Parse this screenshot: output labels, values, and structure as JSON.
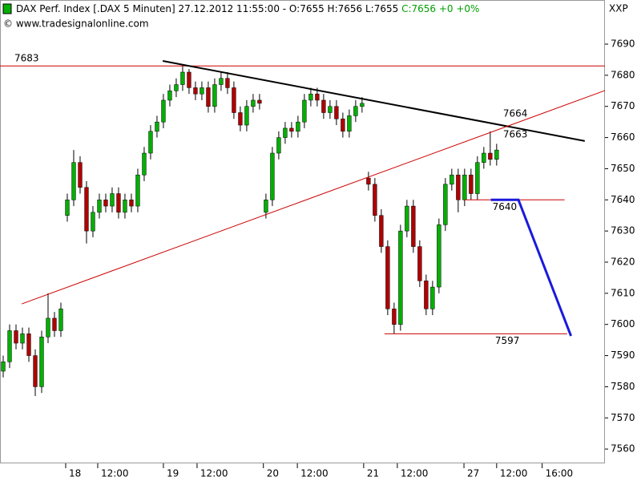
{
  "chart_data": {
    "type": "candlestick",
    "title": "DAX Perf. Index [.DAX  5 Minuten] 27.12.2012 11:55:00 - O:7655 H:7656 L:7655",
    "title_close": "C:7656 +0 +0%",
    "source": "© www.tradesignalonline.com",
    "corner_label": "XXP",
    "up_color": "#00b000",
    "down_color": "#b00000",
    "open": [
      7585,
      7588,
      7598,
      7594,
      7597,
      7590,
      7580,
      7596,
      7602,
      7598,
      7635,
      7640,
      7652,
      7644,
      7630,
      7636,
      7640,
      7638,
      7642,
      7636,
      7640,
      7638,
      7648,
      7655,
      7662,
      7665,
      7672,
      7675,
      7677,
      7681,
      7676,
      7674,
      7676,
      7670,
      7677,
      7679,
      7676,
      7668,
      7664,
      7670,
      7672,
      7636,
      7640,
      7655,
      7660,
      7663,
      7662,
      7665,
      7672,
      7674,
      7672,
      7668,
      7670,
      7666,
      7662,
      7667,
      7670,
      7647,
      7645,
      7635,
      7625,
      7605,
      7600,
      7630,
      7638,
      7625,
      7614,
      7605,
      7612,
      7632,
      7645,
      7648,
      7640,
      7648,
      7642,
      7652,
      7655,
      7653
    ],
    "high": [
      7590,
      7600,
      7600,
      7599,
      7599,
      7592,
      7598,
      7610,
      7604,
      7607,
      7642,
      7656,
      7654,
      7646,
      7638,
      7642,
      7642,
      7644,
      7644,
      7642,
      7642,
      7650,
      7657,
      7664,
      7667,
      7674,
      7677,
      7679,
      7683,
      7682,
      7678,
      7678,
      7678,
      7679,
      7681,
      7681,
      7678,
      7670,
      7672,
      7674,
      7674,
      7642,
      7657,
      7662,
      7665,
      7665,
      7667,
      7674,
      7676,
      7676,
      7674,
      7672,
      7672,
      7668,
      7669,
      7672,
      7673,
      7649,
      7647,
      7637,
      7627,
      7607,
      7632,
      7640,
      7640,
      7627,
      7616,
      7614,
      7634,
      7647,
      7650,
      7650,
      7650,
      7650,
      7654,
      7657,
      7662,
      7658
    ],
    "low": [
      7583,
      7586,
      7592,
      7592,
      7588,
      7577,
      7578,
      7594,
      7596,
      7596,
      7633,
      7638,
      7642,
      7626,
      7628,
      7634,
      7636,
      7636,
      7634,
      7634,
      7636,
      7636,
      7646,
      7653,
      7660,
      7663,
      7670,
      7673,
      7675,
      7674,
      7672,
      7672,
      7668,
      7668,
      7675,
      7674,
      7666,
      7662,
      7662,
      7668,
      7669,
      7634,
      7638,
      7653,
      7658,
      7660,
      7660,
      7663,
      7670,
      7670,
      7666,
      7666,
      7664,
      7660,
      7660,
      7665,
      7668,
      7643,
      7633,
      7623,
      7603,
      7597,
      7598,
      7628,
      7623,
      7612,
      7603,
      7603,
      7610,
      7630,
      7643,
      7636,
      7638,
      7640,
      7640,
      7650,
      7651,
      7651
    ],
    "close": [
      7588,
      7598,
      7594,
      7597,
      7590,
      7580,
      7596,
      7602,
      7598,
      7605,
      7640,
      7652,
      7644,
      7630,
      7636,
      7640,
      7638,
      7642,
      7636,
      7640,
      7638,
      7648,
      7655,
      7662,
      7665,
      7672,
      7675,
      7677,
      7681,
      7676,
      7674,
      7676,
      7670,
      7677,
      7679,
      7676,
      7668,
      7664,
      7670,
      7672,
      7671,
      7640,
      7655,
      7660,
      7663,
      7662,
      7665,
      7672,
      7674,
      7672,
      7668,
      7670,
      7666,
      7662,
      7667,
      7670,
      7671,
      7645,
      7635,
      7625,
      7605,
      7600,
      7630,
      7638,
      7625,
      7614,
      7605,
      7612,
      7632,
      7645,
      7648,
      7640,
      7648,
      7642,
      7652,
      7655,
      7653,
      7656
    ],
    "xlim": [
      0,
      94.4
    ],
    "xticks": [
      {
        "value": 10.25,
        "label": "18"
      },
      {
        "value": 15.25,
        "label": "12:00"
      },
      {
        "value": 25.5,
        "label": "19"
      },
      {
        "value": 30.75,
        "label": "12:00"
      },
      {
        "value": 41.1,
        "label": "20"
      },
      {
        "value": 46.4,
        "label": "12:00"
      },
      {
        "value": 56.75,
        "label": "21"
      },
      {
        "value": 62,
        "label": "12:00"
      },
      {
        "value": 72.4,
        "label": "27"
      },
      {
        "value": 77.5,
        "label": "12:00"
      },
      {
        "value": 84.6,
        "label": "16:00"
      }
    ],
    "ylim": [
      7555.4,
      7698.5
    ],
    "yticks": [
      7560,
      7570,
      7580,
      7590,
      7600,
      7610,
      7620,
      7630,
      7640,
      7650,
      7660,
      7670,
      7680,
      7690
    ],
    "levels": [
      {
        "value": 7683,
        "x": [
          0,
          94.4
        ],
        "color": "#cc0000"
      },
      {
        "value": 7640,
        "x": [
          72.5,
          88.1
        ],
        "color": "#cc0000"
      },
      {
        "value": 7597,
        "x": [
          60,
          88.5
        ],
        "color": "#cc0000"
      }
    ],
    "trendlines": [
      {
        "color": "#000000",
        "x": [
          25.4,
          91.25
        ],
        "y": [
          7684.6,
          7658.9
        ]
      },
      {
        "color": "#cc0000",
        "x": [
          3.4,
          94.4
        ],
        "y": [
          7606.6,
          7675.1
        ]
      },
      {
        "color": "#1a1adc",
        "x": [
          76.6,
          80.9,
          89.1
        ],
        "y": [
          7640,
          7640,
          7596.3
        ]
      }
    ],
    "notes": [
      {
        "value": 7664,
        "x": 78.5,
        "color": "#000000"
      },
      {
        "value": 7663,
        "x": 78.5,
        "color": "#cc0000"
      }
    ]
  }
}
